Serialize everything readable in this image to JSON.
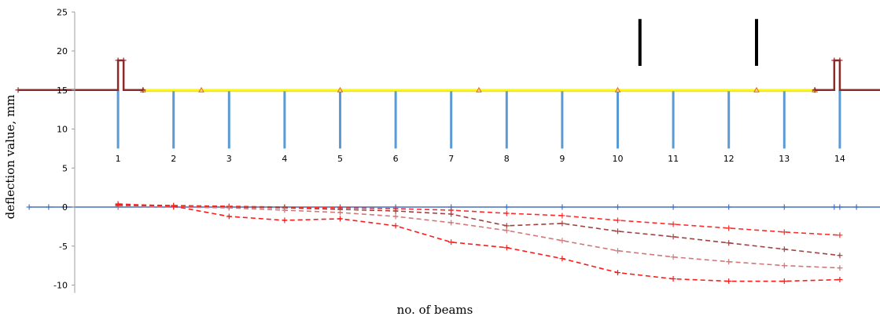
{
  "chart_data": {
    "type": "line",
    "xlabel": "no. of beams",
    "ylabel": "deflection value, mm",
    "ylim": [
      -11,
      25
    ],
    "yticks": [
      25,
      20,
      15,
      10,
      5,
      0,
      -5,
      -10
    ],
    "beam_labels": [
      "1",
      "2",
      "3",
      "4",
      "5",
      "6",
      "7",
      "8",
      "9",
      "10",
      "11",
      "12",
      "13",
      "14"
    ],
    "grid": false,
    "legend": "none",
    "bridge_schematic": {
      "deck_level": 15,
      "beam_bottom": 7.5,
      "beams": [
        1,
        2,
        3,
        4,
        5,
        6,
        7,
        8,
        9,
        10,
        11,
        12,
        13,
        14
      ],
      "deck_segment": [
        1.45,
        13.55
      ],
      "deck_markers": [
        1.45,
        2.5,
        5,
        7.5,
        10,
        12.5,
        13.55
      ],
      "left_rail": {
        "x": [
          -0.8,
          1.0,
          1.1,
          1.45
        ],
        "y_top": 18.8,
        "y_base": 15
      },
      "right_rail": {
        "x": [
          13.55,
          13.9,
          14.0,
          15.7
        ],
        "y_top": 18.8,
        "y_base": 15
      },
      "load_marks": [
        {
          "x": 10.4,
          "y": [
            19,
            25
          ]
        },
        {
          "x": 12.5,
          "y": [
            19,
            25
          ]
        }
      ]
    },
    "series": [
      {
        "x": [
          -0.6,
          -0.25,
          1,
          2,
          3,
          4,
          5,
          6,
          7,
          8,
          9,
          10,
          11,
          12,
          13,
          13.9,
          14,
          14.3,
          15.7
        ],
        "values": [
          0,
          0,
          0,
          0,
          0,
          0,
          0,
          0,
          0,
          0,
          0,
          0,
          0,
          0,
          0,
          0,
          0,
          0,
          0
        ],
        "color": "#4472c4",
        "style": "solid"
      },
      {
        "x": [
          1,
          2,
          3,
          4,
          5,
          6,
          7,
          8,
          9,
          10,
          11,
          12,
          13,
          14
        ],
        "values": [
          0.3,
          0.2,
          0.1,
          0,
          -0.1,
          -0.2,
          -0.4,
          -0.8,
          -1.1,
          -1.7,
          -2.2,
          -2.7,
          -3.2,
          -3.6
        ],
        "color": "#ff2a2a",
        "style": "dashed"
      },
      {
        "x": [
          1,
          2,
          3,
          4,
          5,
          6,
          7,
          8,
          9,
          10,
          11,
          12,
          13,
          14
        ],
        "values": [
          0.2,
          0.1,
          0,
          -0.1,
          -0.3,
          -0.5,
          -0.9,
          -2.4,
          -2.1,
          -3.1,
          -3.8,
          -4.6,
          -5.4,
          -6.2
        ],
        "color": "#a0413f",
        "style": "dashed"
      },
      {
        "x": [
          1,
          2,
          3,
          4,
          5,
          6,
          7,
          8,
          9,
          10,
          11,
          12,
          13,
          14
        ],
        "values": [
          0.1,
          0,
          -0.1,
          -0.4,
          -0.7,
          -1.2,
          -2.0,
          -3.0,
          -4.3,
          -5.6,
          -6.4,
          -7.0,
          -7.5,
          -7.8
        ],
        "color": "#d07878",
        "style": "dashed"
      },
      {
        "x": [
          1,
          2,
          3,
          4,
          5,
          6,
          7,
          8,
          9,
          10,
          11,
          12,
          13,
          14
        ],
        "values": [
          0.4,
          0.1,
          -1.2,
          -1.7,
          -1.5,
          -2.4,
          -4.5,
          -5.2,
          -6.6,
          -8.4,
          -9.2,
          -9.5,
          -9.5,
          -9.3
        ],
        "color": "#ff1a1a",
        "style": "dashed"
      }
    ]
  }
}
